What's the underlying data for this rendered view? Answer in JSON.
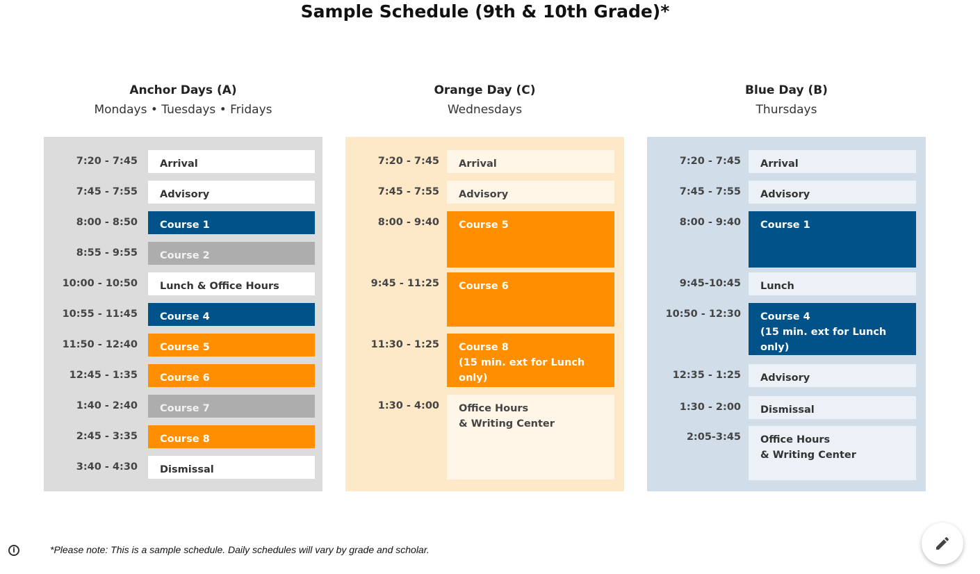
{
  "title": "Sample Schedule (9th & 10th Grade)*",
  "columns": [
    {
      "title": "Anchor Days (A)",
      "subtitle": "Mondays • Tuesdays • Fridays",
      "rows": [
        {
          "time": "7:20 - 7:45",
          "label": "Arrival"
        },
        {
          "time": "7:45 - 7:55",
          "label": "Advisory"
        },
        {
          "time": "8:00 - 8:50",
          "label": "Course 1"
        },
        {
          "time": "8:55 - 9:55",
          "label": "Course 2"
        },
        {
          "time": "10:00 - 10:50",
          "label": "Lunch & Office Hours"
        },
        {
          "time": "10:55 - 11:45",
          "label": "Course 4"
        },
        {
          "time": "11:50 - 12:40",
          "label": "Course 5"
        },
        {
          "time": "12:45 - 1:35",
          "label": "Course 6"
        },
        {
          "time": "1:40 - 2:40",
          "label": "Course 7"
        },
        {
          "time": "2:45 - 3:35",
          "label": "Course 8"
        },
        {
          "time": "3:40 - 4:30",
          "label": "Dismissal"
        }
      ]
    },
    {
      "title": "Orange Day (C)",
      "subtitle": "Wednesdays",
      "rows": [
        {
          "time": "7:20 - 7:45",
          "label": "Arrival"
        },
        {
          "time": "7:45 - 7:55",
          "label": "Advisory"
        },
        {
          "time": "8:00 - 9:40",
          "label": "Course 5"
        },
        {
          "time": "9:45 - 11:25",
          "label": "Course 6"
        },
        {
          "time": "11:30 - 1:25",
          "label": "Course 8\n(15 min. ext for Lunch only)"
        },
        {
          "time": "1:30 - 4:00",
          "label": "Office Hours\n& Writing Center"
        }
      ]
    },
    {
      "title": "Blue Day (B)",
      "subtitle": "Thursdays",
      "rows": [
        {
          "time": "7:20 - 7:45",
          "label": "Arrival"
        },
        {
          "time": "7:45 - 7:55",
          "label": "Advisory"
        },
        {
          "time": "8:00 - 9:40",
          "label": "Course 1"
        },
        {
          "time": "9:45-10:45",
          "label": "Lunch"
        },
        {
          "time": "10:50 - 12:30",
          "label": "Course 4\n(15 min. ext for Lunch only)"
        },
        {
          "time": "12:35 - 1:25",
          "label": "Advisory"
        },
        {
          "time": "1:30 - 2:00",
          "label": "Dismissal"
        },
        {
          "time": "2:05-3:45",
          "label": "Office Hours\n& Writing Center"
        }
      ]
    }
  ],
  "note": "*Please note: This is a sample schedule. Daily schedules will vary by grade and scholar.",
  "colors": {
    "navy": "#005288",
    "orange": "#ff8f00",
    "gray_block": "#adadad",
    "anchor_bg": "#dcdcdc",
    "orange_bg": "#fde8c7",
    "blue_bg": "#d1dee9"
  },
  "icons": {
    "info": "info-icon",
    "edit": "pencil-icon"
  }
}
